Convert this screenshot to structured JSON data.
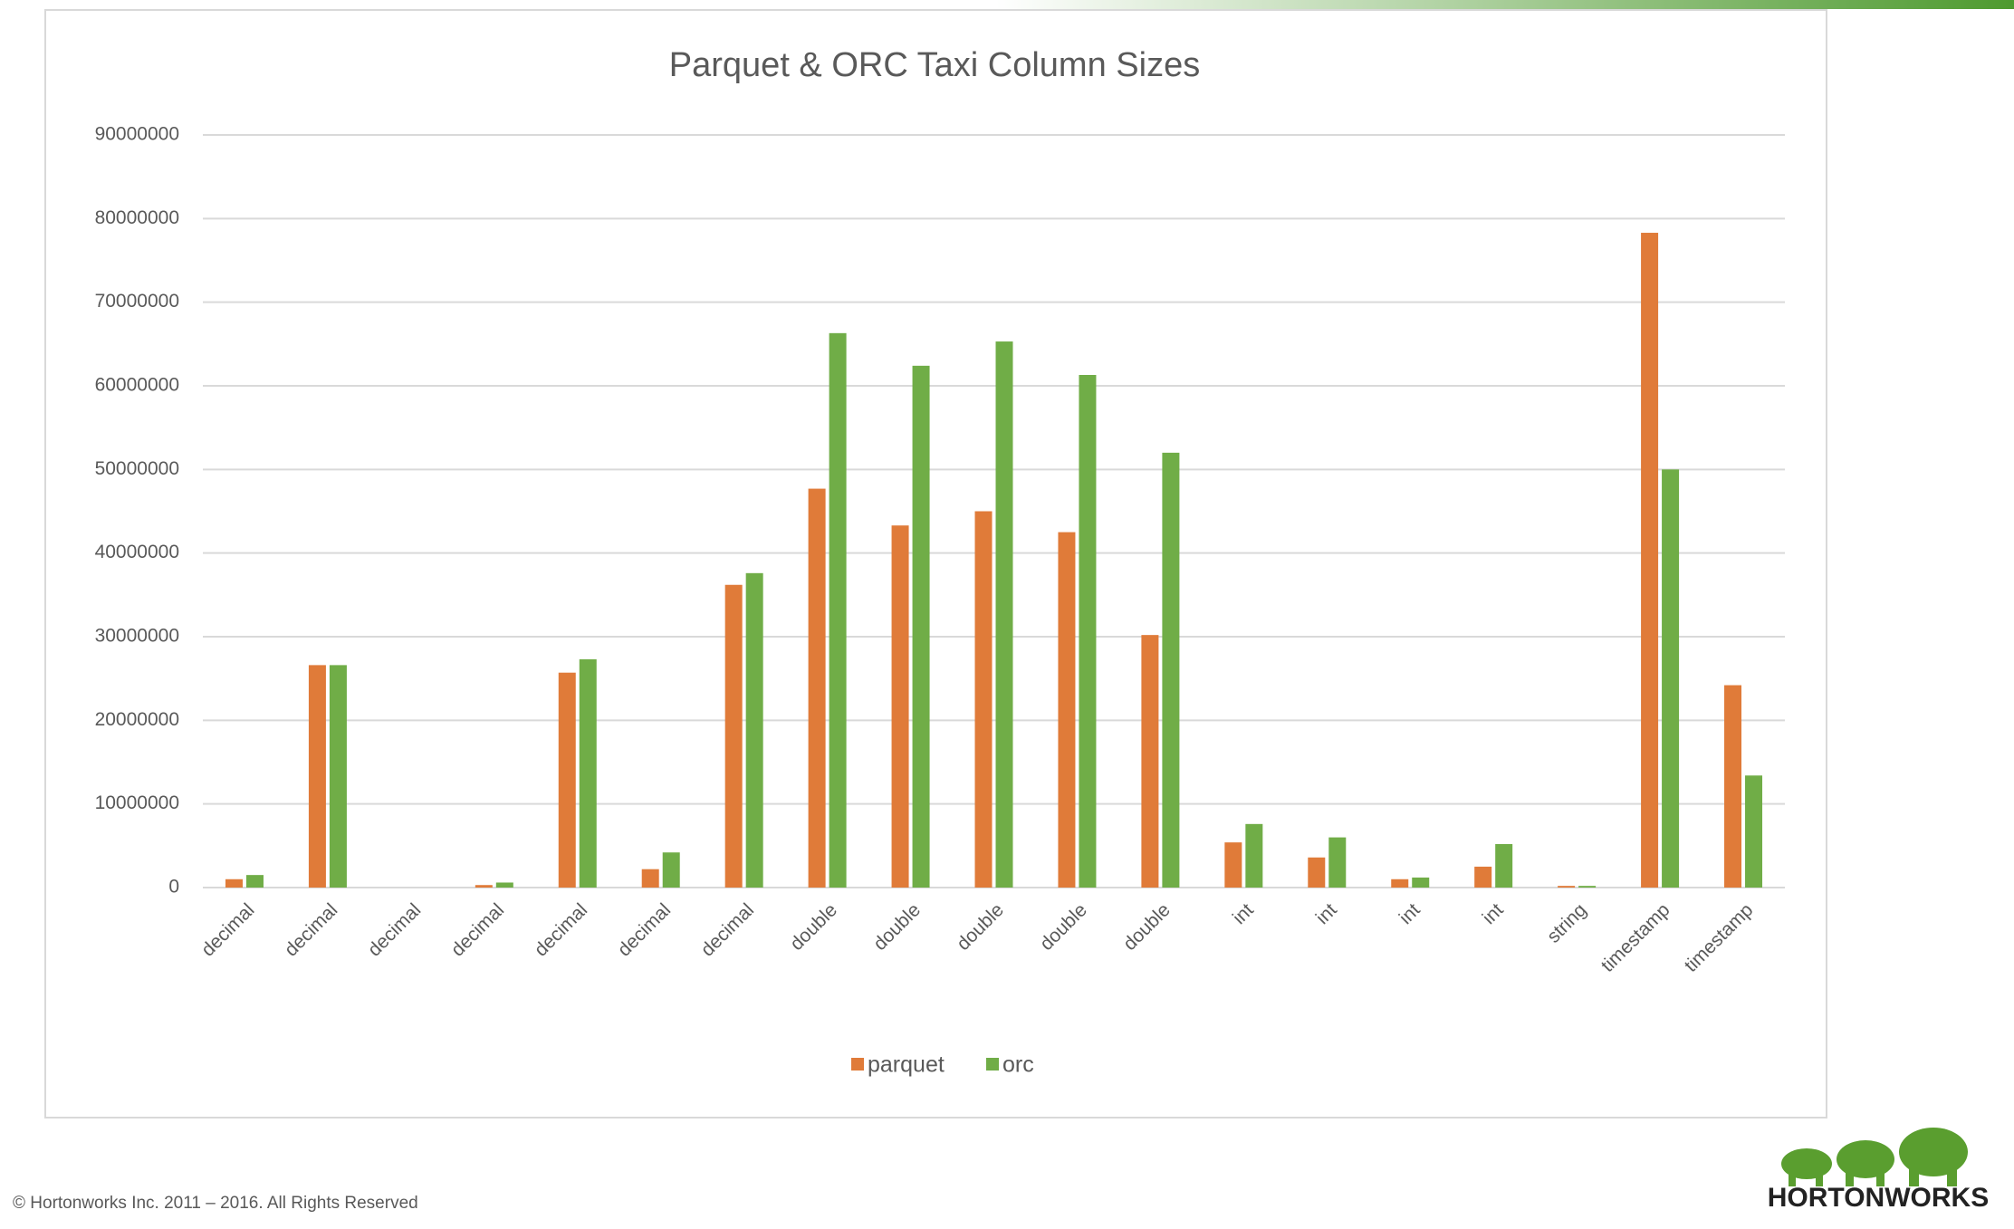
{
  "chart_data": {
    "type": "grouped-bar",
    "title": "Parquet & ORC Taxi Column Sizes",
    "categories": [
      "decimal",
      "decimal",
      "decimal",
      "decimal",
      "decimal",
      "decimal",
      "decimal",
      "double",
      "double",
      "double",
      "double",
      "double",
      "int",
      "int",
      "int",
      "int",
      "string",
      "timestamp",
      "timestamp"
    ],
    "series": [
      {
        "name": "parquet",
        "color": "#e07b39",
        "values": [
          1000000,
          26600000,
          0,
          300000,
          25700000,
          2200000,
          36200000,
          47700000,
          43300000,
          45000000,
          42500000,
          30200000,
          5400000,
          3600000,
          1000000,
          2500000,
          200000,
          78300000,
          24200000
        ]
      },
      {
        "name": "orc",
        "color": "#70ad47",
        "values": [
          1500000,
          26600000,
          0,
          600000,
          27300000,
          4200000,
          37600000,
          66300000,
          62400000,
          65300000,
          61300000,
          52000000,
          7600000,
          6000000,
          1200000,
          5200000,
          200000,
          50000000,
          13400000
        ]
      }
    ],
    "ylim": [
      0,
      90000000
    ],
    "yticks": [
      0,
      10000000,
      20000000,
      30000000,
      40000000,
      50000000,
      60000000,
      70000000,
      80000000,
      90000000
    ],
    "grid": true,
    "legend": "bottom"
  },
  "footer": "© Hortonworks Inc. 2011 – 2016. All Rights Reserved",
  "logo": "HORTONWORKS"
}
